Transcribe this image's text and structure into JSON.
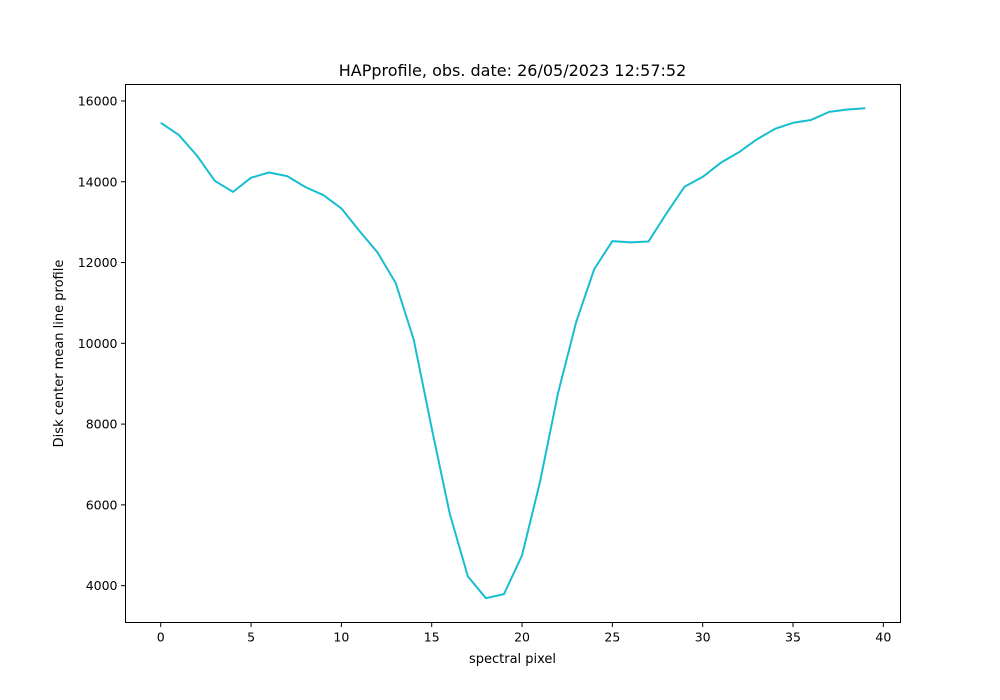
{
  "chart_data": {
    "type": "line",
    "title": "HAPprofile, obs. date: 26/05/2023 12:57:52",
    "xlabel": "spectral pixel",
    "ylabel": "Disk center mean line profile",
    "xlim": [
      -1.95,
      40.95
    ],
    "ylim": [
      3088,
      16408
    ],
    "xticks": [
      0,
      5,
      10,
      15,
      20,
      25,
      30,
      35,
      40
    ],
    "yticks": [
      4000,
      6000,
      8000,
      10000,
      12000,
      14000,
      16000
    ],
    "grid": false,
    "line_color": "#17becf",
    "series": [
      {
        "x": [
          0,
          1,
          2,
          3,
          4,
          5,
          6,
          7,
          8,
          9,
          10,
          11,
          12,
          13,
          14,
          15,
          16,
          17,
          18,
          19,
          20,
          21,
          22,
          23,
          24,
          25,
          26,
          27,
          28,
          29,
          30,
          31,
          32,
          33,
          34,
          35,
          36,
          37,
          38,
          39
        ],
        "values": [
          15460,
          15160,
          14650,
          14020,
          13750,
          14100,
          14230,
          14140,
          13870,
          13670,
          13340,
          12780,
          12250,
          11500,
          10100,
          7900,
          5780,
          4230,
          3690,
          3790,
          4750,
          6580,
          8780,
          10530,
          11840,
          12530,
          12500,
          12520,
          13220,
          13880,
          14120,
          14470,
          14730,
          15050,
          15310,
          15460,
          15530,
          15730,
          15790,
          15820
        ]
      }
    ]
  }
}
